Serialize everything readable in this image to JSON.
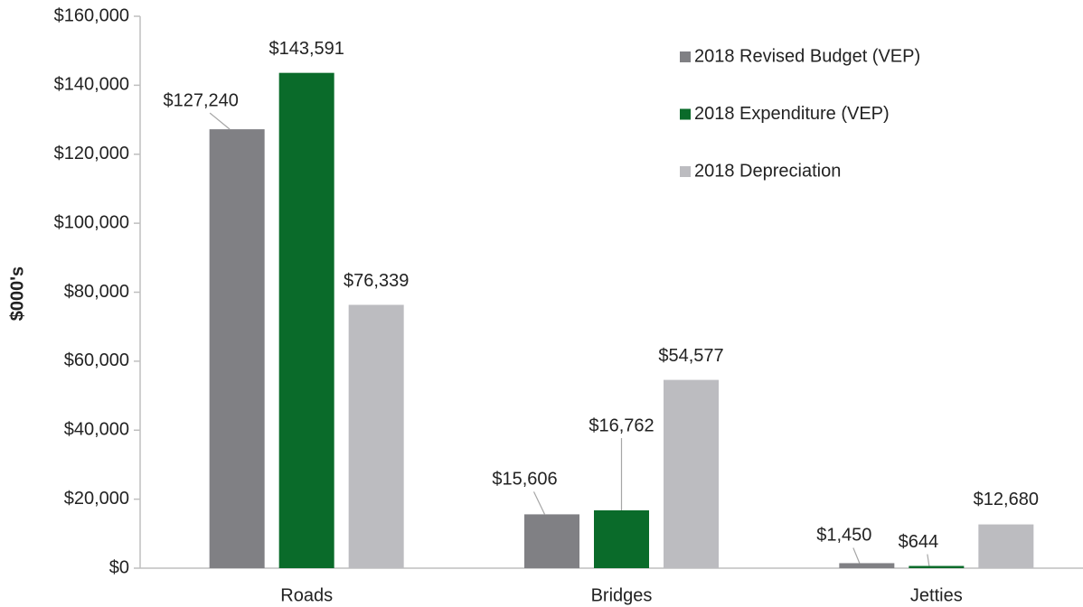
{
  "chart_data": {
    "type": "bar",
    "y_label": "$000's",
    "categories": [
      "Roads",
      "Bridges",
      "Jetties"
    ],
    "series": [
      {
        "name": "2018 Revised Budget (VEP)",
        "color": "#808084",
        "values": [
          127240,
          15606,
          1450
        ],
        "value_labels": [
          "$127,240",
          "$15,606",
          "$1,450"
        ]
      },
      {
        "name": "2018 Expenditure (VEP)",
        "color": "#0a6b2a",
        "values": [
          143591,
          16762,
          644
        ],
        "value_labels": [
          "$143,591",
          "$16,762",
          "$644"
        ]
      },
      {
        "name": "2018 Depreciation",
        "color": "#bcbcc0",
        "values": [
          76339,
          54577,
          12680
        ],
        "value_labels": [
          "$76,339",
          "$54,577",
          "$12,680"
        ]
      }
    ],
    "ylim": [
      0,
      160000
    ],
    "yticks": [
      {
        "value": 0,
        "label": "$0"
      },
      {
        "value": 20000,
        "label": "$20,000"
      },
      {
        "value": 40000,
        "label": "$40,000"
      },
      {
        "value": 60000,
        "label": "$60,000"
      },
      {
        "value": 80000,
        "label": "$80,000"
      },
      {
        "value": 100000,
        "label": "$100,000"
      },
      {
        "value": 120000,
        "label": "$120,000"
      },
      {
        "value": 140000,
        "label": "$140,000"
      },
      {
        "value": 160000,
        "label": "$160,000"
      }
    ],
    "legend": "upper right"
  }
}
